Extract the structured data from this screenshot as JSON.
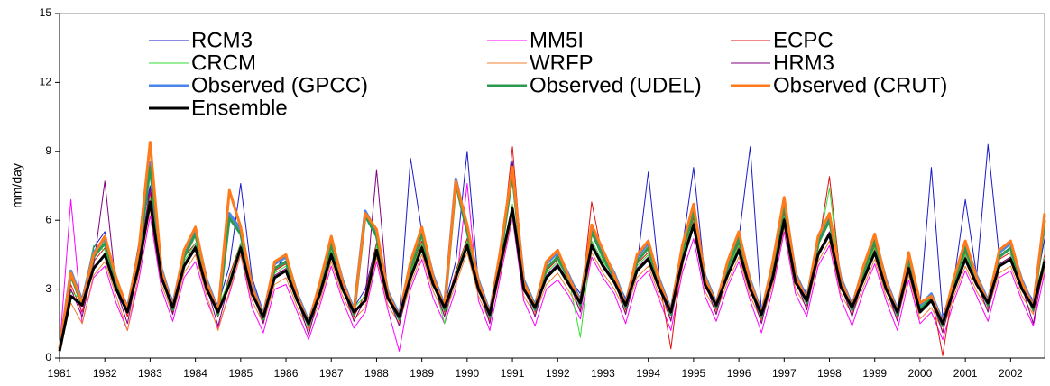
{
  "chart_data": {
    "type": "line",
    "ylabel": "mm/day",
    "xlim": [
      1981,
      2002.75
    ],
    "xticks": [
      1981,
      1982,
      1983,
      1984,
      1985,
      1986,
      1987,
      1988,
      1989,
      1990,
      1991,
      1992,
      1993,
      1994,
      1995,
      1996,
      1997,
      1998,
      1999,
      2000,
      2001,
      2002
    ],
    "ylim": [
      0,
      15
    ],
    "yticks": [
      0,
      3,
      6,
      9,
      12,
      15
    ],
    "grid": false,
    "legend": "top",
    "x": [
      1981,
      1981.25,
      1981.5,
      1981.75,
      1982,
      1982.25,
      1982.5,
      1982.75,
      1983,
      1983.25,
      1983.5,
      1983.75,
      1984,
      1984.25,
      1984.5,
      1984.75,
      1985,
      1985.25,
      1985.5,
      1985.75,
      1986,
      1986.25,
      1986.5,
      1986.75,
      1987,
      1987.25,
      1987.5,
      1987.75,
      1988,
      1988.25,
      1988.5,
      1988.75,
      1989,
      1989.25,
      1989.5,
      1989.75,
      1990,
      1990.25,
      1990.5,
      1990.75,
      1991,
      1991.25,
      1991.5,
      1991.75,
      1992,
      1992.25,
      1992.5,
      1992.75,
      1993,
      1993.25,
      1993.5,
      1993.75,
      1994,
      1994.25,
      1994.5,
      1994.75,
      1995,
      1995.25,
      1995.5,
      1995.75,
      1996,
      1996.25,
      1996.5,
      1996.75,
      1997,
      1997.25,
      1997.5,
      1997.75,
      1998,
      1998.25,
      1998.5,
      1998.75,
      1999,
      1999.25,
      1999.5,
      1999.75,
      2000,
      2000.25,
      2000.5,
      2000.75,
      2001,
      2001.25,
      2001.5,
      2001.75,
      2002,
      2002.25,
      2002.5,
      2002.75
    ],
    "series": [
      {
        "name": "RCM3",
        "color": "#1a1acc",
        "width": 1,
        "values": [
          0.5,
          3.8,
          2.6,
          4.8,
          5.5,
          3.4,
          2.2,
          5.0,
          7.5,
          3.8,
          2.5,
          4.5,
          5.5,
          3.2,
          2.3,
          4.0,
          7.6,
          3.5,
          2.0,
          3.8,
          4.5,
          2.8,
          1.4,
          3.0,
          5.2,
          3.3,
          2.2,
          3.0,
          5.0,
          2.7,
          1.8,
          8.7,
          5.5,
          3.5,
          2.3,
          4.2,
          9.0,
          3.2,
          2.0,
          4.8,
          8.6,
          3.2,
          2.4,
          3.8,
          4.5,
          3.5,
          2.8,
          5.5,
          4.4,
          3.6,
          2.6,
          4.0,
          8.1,
          3.3,
          2.2,
          4.8,
          8.3,
          3.5,
          2.5,
          4.0,
          5.2,
          9.2,
          2.0,
          3.8,
          6.5,
          3.6,
          2.8,
          5.0,
          5.9,
          3.4,
          2.4,
          3.8,
          5.2,
          3.2,
          2.2,
          4.3,
          2.3,
          8.3,
          1.8,
          3.4,
          6.9,
          3.6,
          9.3,
          4.4,
          4.8,
          3.3,
          2.5,
          5.2
        ]
      },
      {
        "name": "MM5I",
        "color": "#ff00ff",
        "width": 1,
        "values": [
          0.4,
          6.9,
          1.5,
          3.5,
          4.0,
          2.4,
          1.2,
          3.4,
          6.2,
          3.0,
          1.6,
          3.5,
          4.2,
          2.5,
          1.3,
          2.8,
          4.5,
          2.2,
          1.1,
          3.0,
          3.2,
          2.0,
          0.8,
          2.3,
          4.0,
          2.5,
          1.3,
          2.0,
          4.2,
          2.1,
          0.3,
          3.0,
          4.3,
          2.6,
          1.5,
          3.0,
          7.6,
          2.5,
          1.2,
          3.7,
          6.1,
          2.5,
          1.4,
          3.0,
          3.4,
          2.7,
          1.7,
          4.4,
          3.5,
          2.8,
          1.5,
          3.3,
          3.8,
          2.5,
          1.2,
          3.7,
          5.2,
          2.7,
          1.6,
          3.1,
          4.2,
          2.5,
          1.1,
          3.0,
          5.5,
          2.8,
          1.8,
          4.0,
          4.9,
          2.6,
          1.4,
          2.9,
          4.1,
          2.5,
          1.2,
          3.4,
          1.5,
          2.0,
          0.8,
          2.5,
          3.8,
          2.7,
          1.6,
          3.5,
          3.8,
          2.5,
          1.4,
          3.7
        ]
      },
      {
        "name": "ECPC",
        "color": "#e01010",
        "width": 1,
        "values": [
          0.3,
          3.2,
          2.0,
          4.2,
          4.8,
          3.3,
          1.8,
          4.3,
          7.2,
          3.8,
          2.0,
          4.4,
          5.0,
          3.3,
          1.8,
          3.6,
          5.0,
          3.1,
          1.6,
          3.8,
          4.1,
          2.8,
          1.3,
          3.1,
          4.8,
          3.3,
          1.8,
          2.8,
          5.0,
          2.9,
          1.6,
          3.8,
          5.1,
          3.5,
          2.0,
          3.8,
          5.2,
          3.3,
          1.7,
          4.5,
          9.2,
          3.3,
          2.0,
          3.8,
          4.3,
          3.5,
          2.2,
          6.8,
          4.3,
          3.6,
          2.1,
          4.1,
          4.6,
          3.3,
          0.4,
          4.5,
          6.1,
          3.5,
          2.1,
          3.9,
          5.0,
          3.3,
          1.7,
          3.8,
          6.3,
          3.6,
          2.3,
          4.8,
          7.9,
          3.4,
          2.0,
          3.7,
          4.9,
          3.3,
          1.8,
          4.2,
          2.2,
          2.8,
          0.1,
          3.3,
          4.6,
          3.5,
          2.2,
          4.3,
          4.6,
          3.3,
          2.0,
          4.5
        ]
      },
      {
        "name": "CRCM",
        "color": "#33dd33",
        "width": 1,
        "values": [
          0.4,
          2.9,
          2.5,
          4.9,
          4.7,
          3.2,
          2.2,
          4.2,
          7.0,
          3.7,
          2.4,
          4.2,
          5.0,
          3.2,
          2.2,
          3.4,
          5.0,
          3.0,
          2.0,
          3.7,
          4.0,
          2.7,
          1.7,
          3.0,
          4.7,
          3.2,
          2.2,
          2.7,
          4.9,
          2.8,
          2.0,
          3.7,
          5.0,
          3.4,
          1.5,
          3.7,
          5.1,
          3.2,
          2.1,
          4.4,
          6.7,
          3.2,
          2.4,
          3.7,
          4.2,
          3.4,
          0.9,
          5.1,
          4.2,
          3.5,
          2.5,
          4.0,
          4.5,
          3.2,
          2.2,
          4.4,
          6.0,
          3.4,
          2.5,
          3.8,
          4.9,
          3.2,
          2.1,
          3.7,
          6.2,
          3.5,
          2.7,
          4.7,
          7.4,
          3.3,
          2.4,
          3.6,
          4.8,
          3.2,
          2.2,
          4.1,
          2.2,
          2.7,
          1.7,
          3.2,
          4.5,
          3.4,
          2.6,
          4.8,
          4.5,
          3.2,
          2.4,
          4.4
        ]
      },
      {
        "name": "WRFP",
        "color": "#f08030",
        "width": 1,
        "values": [
          0.3,
          2.4,
          1.5,
          3.6,
          4.2,
          2.7,
          1.2,
          3.7,
          6.5,
          3.2,
          1.9,
          3.7,
          4.5,
          2.7,
          1.2,
          2.9,
          4.5,
          2.5,
          1.5,
          3.2,
          3.5,
          2.2,
          1.2,
          2.5,
          4.2,
          2.7,
          1.7,
          2.2,
          4.4,
          2.3,
          1.5,
          3.2,
          4.5,
          2.9,
          1.9,
          3.2,
          4.6,
          2.7,
          1.6,
          3.9,
          6.2,
          2.7,
          1.9,
          3.2,
          3.7,
          2.9,
          2.1,
          4.6,
          3.7,
          3.0,
          2.0,
          3.5,
          4.0,
          2.7,
          1.7,
          3.9,
          6.6,
          2.9,
          2.0,
          3.3,
          4.4,
          2.7,
          1.6,
          3.2,
          5.7,
          3.0,
          2.2,
          4.2,
          5.1,
          2.8,
          1.9,
          3.1,
          4.3,
          2.7,
          1.7,
          3.6,
          1.7,
          2.2,
          1.2,
          2.7,
          4.0,
          2.9,
          2.1,
          3.7,
          4.0,
          2.7,
          1.9,
          3.9
        ]
      },
      {
        "name": "HRM3",
        "color": "#800080",
        "width": 1,
        "values": [
          0.5,
          3.0,
          1.8,
          4.0,
          7.7,
          3.0,
          1.5,
          4.1,
          7.4,
          3.6,
          1.9,
          4.1,
          4.9,
          3.1,
          1.4,
          3.3,
          4.9,
          2.9,
          1.5,
          3.6,
          3.9,
          2.6,
          1.0,
          2.9,
          4.6,
          3.1,
          1.6,
          2.6,
          8.2,
          2.7,
          1.4,
          3.6,
          4.9,
          3.3,
          1.8,
          3.6,
          5.0,
          3.1,
          1.5,
          4.3,
          6.6,
          3.1,
          1.8,
          3.6,
          4.1,
          3.3,
          2.0,
          5.0,
          4.1,
          3.4,
          1.9,
          3.9,
          4.4,
          3.1,
          1.6,
          4.3,
          5.9,
          3.3,
          1.9,
          3.7,
          4.8,
          3.1,
          1.5,
          3.6,
          6.1,
          3.4,
          2.1,
          4.6,
          5.5,
          3.2,
          1.8,
          3.5,
          4.7,
          3.1,
          1.6,
          4.0,
          2.1,
          2.6,
          1.1,
          3.1,
          4.4,
          3.3,
          2.0,
          4.1,
          4.4,
          3.1,
          1.5,
          4.3
        ]
      },
      {
        "name": "Observed (GPCC)",
        "color": "#4a86e8",
        "width": 3,
        "values": [
          0.4,
          3.8,
          2.5,
          4.6,
          5.2,
          3.4,
          2.2,
          4.6,
          8.5,
          3.9,
          2.3,
          4.6,
          5.6,
          3.4,
          2.1,
          6.3,
          5.6,
          3.2,
          1.9,
          4.1,
          4.4,
          2.8,
          1.6,
          3.2,
          5.2,
          3.4,
          2.1,
          6.4,
          5.5,
          2.9,
          1.9,
          4.1,
          5.6,
          3.6,
          2.3,
          7.8,
          5.7,
          3.4,
          2.0,
          4.8,
          8.2,
          3.4,
          2.3,
          4.1,
          4.6,
          3.6,
          2.5,
          5.7,
          4.6,
          3.7,
          2.4,
          4.4,
          5.0,
          3.4,
          2.1,
          4.8,
          6.6,
          3.6,
          2.4,
          4.1,
          5.4,
          3.4,
          2.0,
          4.1,
          6.9,
          3.7,
          2.6,
          5.2,
          6.2,
          3.5,
          2.3,
          3.9,
          5.3,
          3.4,
          2.1,
          4.5,
          2.3,
          2.8,
          1.6,
          3.4,
          5.0,
          3.6,
          2.5,
          4.6,
          5.0,
          3.4,
          2.3,
          6.2
        ]
      },
      {
        "name": "Observed (UDEL)",
        "color": "#2e9950",
        "width": 3,
        "values": [
          0.4,
          3.6,
          2.3,
          4.4,
          5.0,
          3.2,
          2.0,
          4.4,
          8.3,
          3.7,
          2.1,
          4.4,
          5.4,
          3.2,
          1.9,
          6.1,
          5.4,
          3.0,
          1.7,
          3.9,
          4.2,
          2.6,
          1.4,
          3.0,
          5.0,
          3.2,
          1.9,
          6.2,
          5.3,
          2.7,
          1.7,
          3.9,
          5.4,
          3.4,
          2.1,
          7.6,
          5.5,
          3.2,
          1.8,
          4.6,
          8.0,
          3.2,
          2.1,
          3.9,
          4.4,
          3.4,
          2.3,
          5.5,
          4.4,
          3.5,
          2.2,
          4.2,
          4.8,
          3.2,
          1.9,
          4.6,
          6.4,
          3.4,
          2.2,
          3.9,
          5.2,
          3.2,
          1.8,
          3.9,
          6.7,
          3.5,
          2.4,
          5.0,
          6.0,
          3.3,
          2.1,
          3.7,
          5.1,
          3.2,
          1.9,
          4.3,
          2.1,
          2.6,
          1.4,
          3.2,
          4.8,
          3.4,
          2.3,
          4.4,
          4.8,
          3.2,
          2.1,
          6.0
        ]
      },
      {
        "name": "Observed (CRUT)",
        "color": "#ff7a1a",
        "width": 3,
        "values": [
          0.4,
          3.7,
          2.4,
          4.5,
          5.3,
          3.5,
          2.1,
          4.7,
          9.4,
          3.8,
          2.2,
          4.7,
          5.7,
          3.3,
          2.0,
          7.3,
          5.7,
          3.1,
          1.8,
          4.2,
          4.5,
          2.7,
          1.5,
          3.3,
          5.3,
          3.3,
          2.0,
          6.3,
          5.6,
          2.8,
          1.8,
          4.2,
          5.7,
          3.5,
          2.2,
          7.7,
          5.8,
          3.3,
          1.9,
          4.9,
          8.3,
          3.3,
          2.2,
          4.2,
          4.7,
          3.5,
          2.4,
          5.8,
          4.7,
          3.6,
          2.3,
          4.5,
          5.1,
          3.3,
          2.0,
          4.9,
          6.7,
          3.5,
          2.3,
          4.2,
          5.5,
          3.3,
          1.9,
          4.2,
          7.0,
          3.6,
          2.5,
          5.3,
          6.3,
          3.4,
          2.2,
          4.0,
          5.4,
          3.3,
          2.0,
          4.6,
          2.4,
          2.7,
          1.5,
          3.5,
          5.1,
          3.5,
          2.4,
          4.7,
          5.1,
          3.3,
          2.2,
          6.3
        ]
      },
      {
        "name": "Ensemble",
        "color": "#000000",
        "width": 3,
        "values": [
          0.3,
          2.7,
          2.3,
          3.9,
          4.5,
          3.0,
          2.0,
          4.0,
          6.8,
          3.5,
          2.2,
          4.0,
          4.8,
          3.0,
          2.0,
          3.2,
          4.8,
          2.8,
          1.8,
          3.5,
          3.8,
          2.5,
          1.5,
          2.8,
          4.5,
          3.0,
          2.0,
          2.5,
          4.7,
          2.6,
          1.8,
          3.5,
          4.8,
          3.2,
          2.2,
          3.5,
          4.9,
          3.0,
          1.9,
          4.2,
          6.5,
          3.0,
          2.2,
          3.5,
          4.0,
          3.2,
          2.4,
          4.9,
          4.0,
          3.3,
          2.3,
          3.8,
          4.3,
          3.0,
          2.0,
          4.2,
          5.8,
          3.2,
          2.3,
          3.6,
          4.7,
          3.0,
          1.9,
          3.5,
          6.0,
          3.3,
          2.5,
          4.5,
          5.4,
          3.1,
          2.2,
          3.4,
          4.6,
          3.0,
          2.0,
          3.9,
          2.0,
          2.5,
          1.5,
          3.0,
          4.3,
          3.2,
          2.4,
          4.0,
          4.3,
          3.0,
          2.2,
          4.2
        ]
      }
    ]
  }
}
